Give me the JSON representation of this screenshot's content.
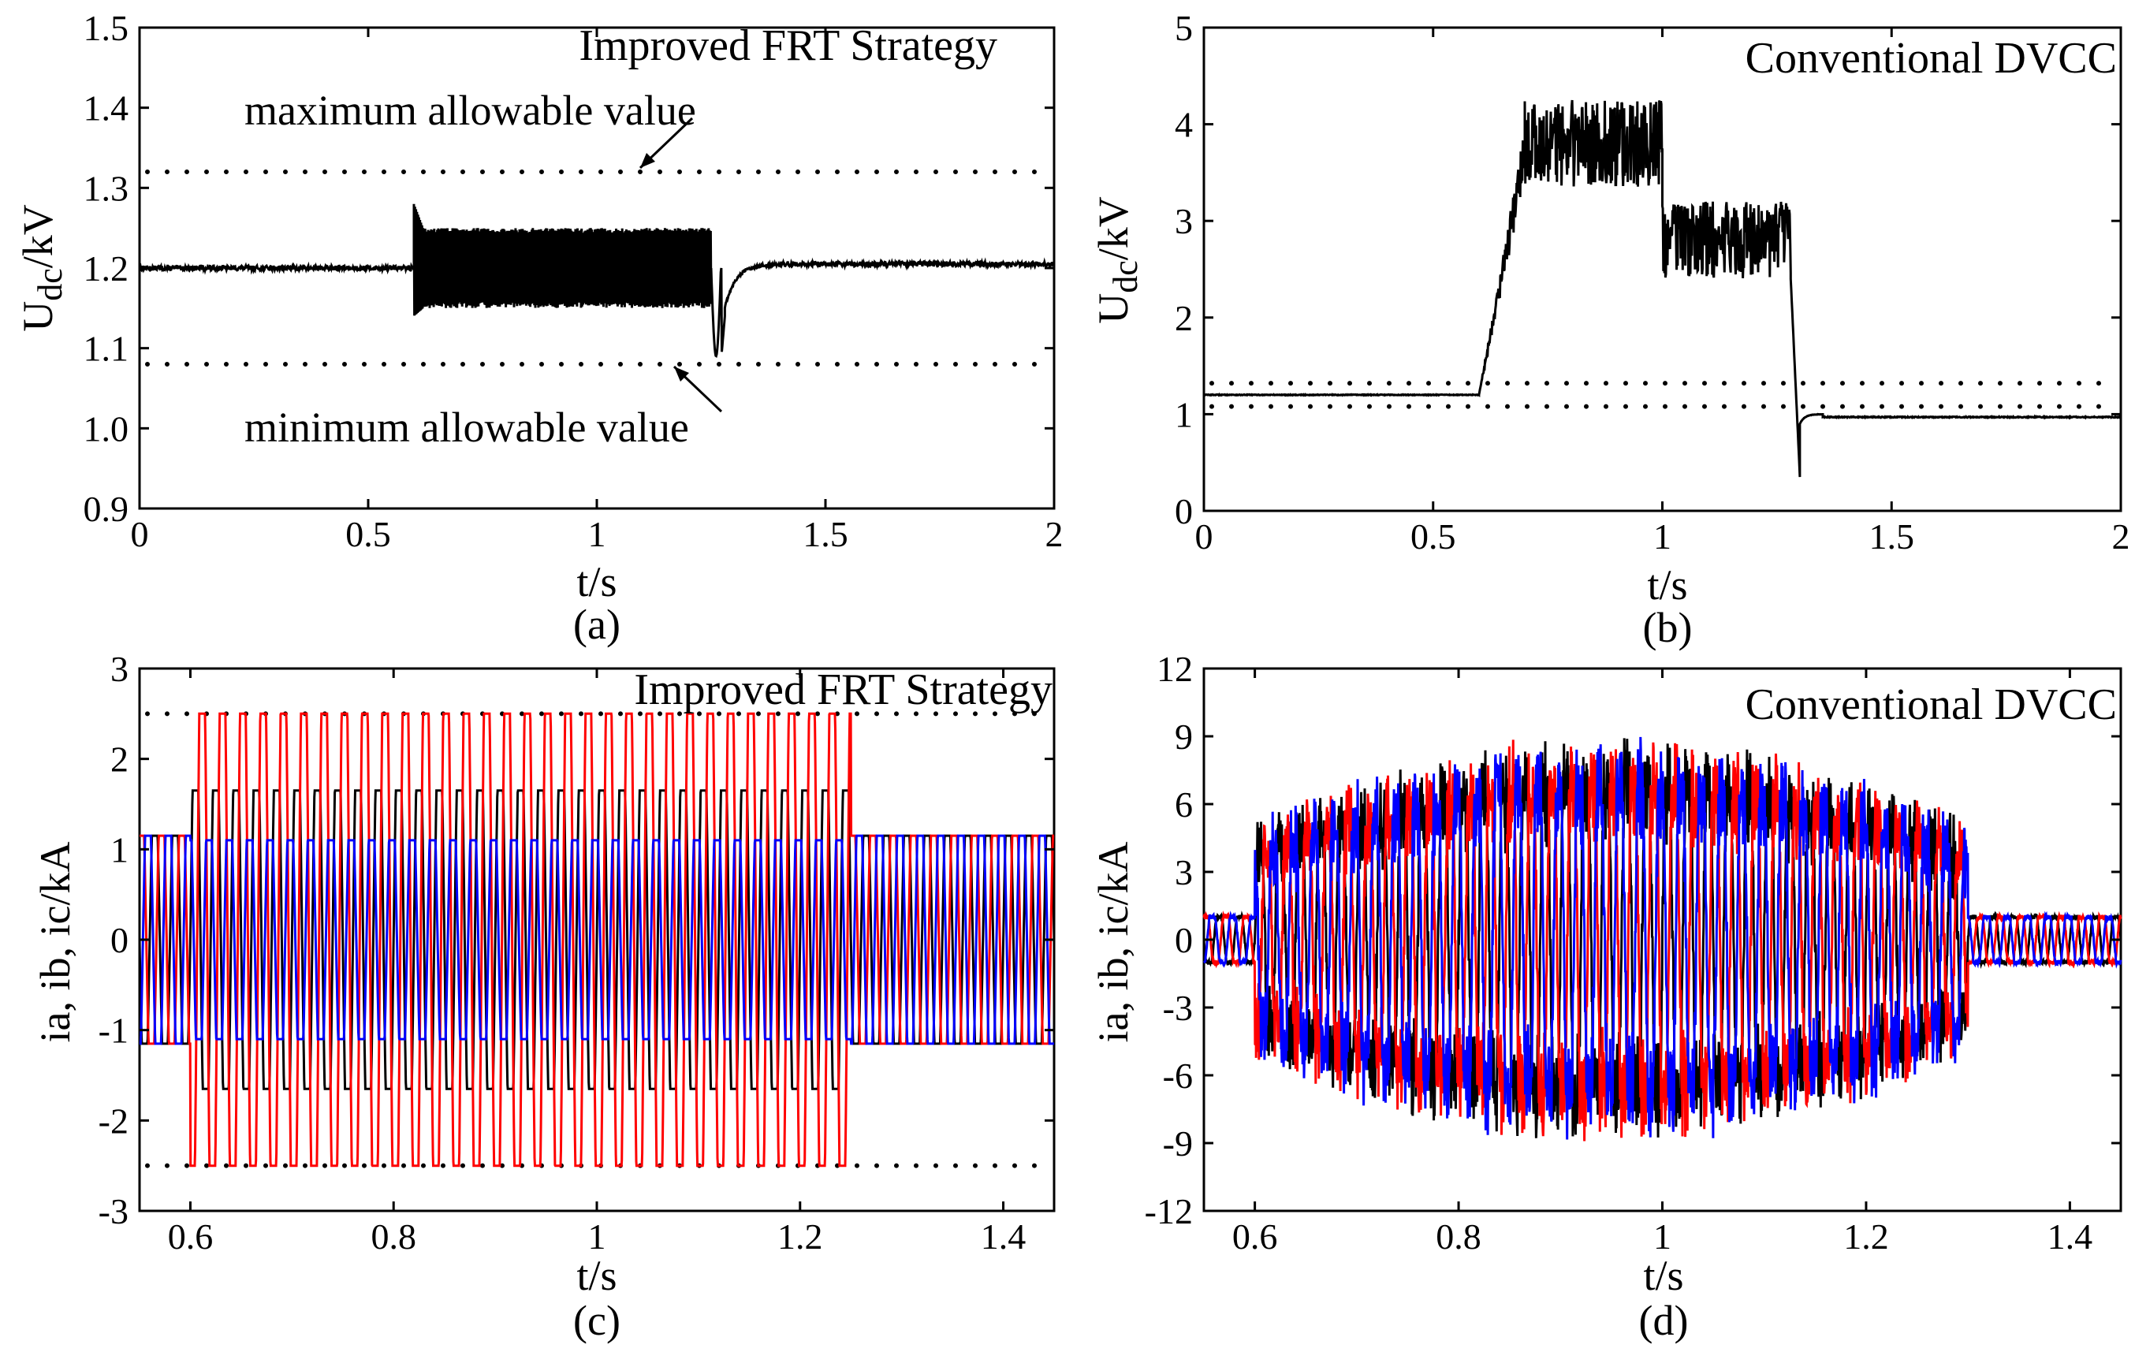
{
  "chart_data": [
    {
      "id": "a",
      "type": "line",
      "caption": "(a)",
      "title": "Improved FRT Strategy",
      "xlabel": "t/s",
      "ylabel_main": "U",
      "ylabel_sub": "dc",
      "ylabel_unit": "/kV",
      "xlim": [
        0,
        2
      ],
      "ylim": [
        0.9,
        1.5
      ],
      "xticks": [
        0,
        0.5,
        1,
        1.5,
        2
      ],
      "xtick_labels": [
        "0",
        "0.5",
        "1",
        "1.5",
        "2"
      ],
      "yticks": [
        0.9,
        1.0,
        1.1,
        1.2,
        1.3,
        1.4,
        1.5
      ],
      "ytick_labels": [
        "0.9",
        "1.0",
        "1.1",
        "1.2",
        "1.3",
        "1.4",
        "1.5"
      ],
      "limits": [
        1.32,
        1.08
      ],
      "annotations": [
        {
          "text": "maximum allowable value",
          "target": [
            1.08,
            1.32
          ]
        },
        {
          "text": "minimum allowable value",
          "target": [
            1.15,
            1.08
          ]
        }
      ],
      "series": [
        {
          "name": "Udc",
          "color": "#000000",
          "segments": [
            {
              "t0": 0.0,
              "t1": 0.6,
              "kind": "flat",
              "level": 1.2,
              "noise": 0.003
            },
            {
              "t0": 0.6,
              "t1": 0.62,
              "kind": "transient",
              "level": 1.2,
              "peak": 1.28,
              "dip": 1.14
            },
            {
              "t0": 0.62,
              "t1": 1.25,
              "kind": "ripple",
              "low": 1.15,
              "high": 1.25
            },
            {
              "t0": 1.25,
              "t1": 1.28,
              "kind": "dip",
              "level": 1.2,
              "min": 1.09
            },
            {
              "t0": 1.28,
              "t1": 1.4,
              "kind": "recover",
              "from": 1.15,
              "to": 1.205
            },
            {
              "t0": 1.4,
              "t1": 2.0,
              "kind": "flat",
              "level": 1.205,
              "noise": 0.003
            }
          ]
        }
      ]
    },
    {
      "id": "b",
      "type": "line",
      "caption": "(b)",
      "title": "Conventional DVCC",
      "xlabel": "t/s",
      "ylabel_main": "U",
      "ylabel_sub": "dc",
      "ylabel_unit": "/kV",
      "xlim": [
        0,
        2
      ],
      "ylim": [
        0,
        5
      ],
      "xticks": [
        0,
        0.5,
        1,
        1.5,
        2
      ],
      "xtick_labels": [
        "0",
        "0.5",
        "1",
        "1.5",
        "2"
      ],
      "yticks": [
        0,
        1,
        2,
        3,
        4,
        5
      ],
      "ytick_labels": [
        "0",
        "1",
        "2",
        "3",
        "4",
        "5"
      ],
      "limits": [
        1.32,
        1.08
      ],
      "series": [
        {
          "name": "Udc",
          "color": "#000000",
          "segments": [
            {
              "t0": 0.0,
              "t1": 0.6,
              "kind": "flat",
              "level": 1.2,
              "noise": 0.004
            },
            {
              "t0": 0.6,
              "t1": 0.7,
              "kind": "rise",
              "from": 1.2,
              "to": 3.7,
              "noise": 0.3
            },
            {
              "t0": 0.7,
              "t1": 1.0,
              "kind": "noisy",
              "level": 3.8,
              "noise": 0.45
            },
            {
              "t0": 1.0,
              "t1": 1.28,
              "kind": "noisy",
              "level": 2.8,
              "noise": 0.4
            },
            {
              "t0": 1.28,
              "t1": 1.3,
              "kind": "fall",
              "from": 2.4,
              "to": 0.35
            },
            {
              "t0": 1.3,
              "t1": 1.35,
              "kind": "recover",
              "from": 0.9,
              "to": 1.0
            },
            {
              "t0": 1.35,
              "t1": 2.0,
              "kind": "flat",
              "level": 0.97,
              "noise": 0.005
            }
          ]
        }
      ]
    },
    {
      "id": "c",
      "type": "line",
      "caption": "(c)",
      "title": "Improved FRT Strategy",
      "xlabel": "t/s",
      "ylabel": "ia, ib, ic/kA",
      "xlim": [
        0.55,
        1.45
      ],
      "ylim": [
        -3,
        3
      ],
      "xticks": [
        0.6,
        0.8,
        1.0,
        1.2,
        1.4
      ],
      "xtick_labels": [
        "0.6",
        "0.8",
        "1",
        "1.2",
        "1.4"
      ],
      "yticks": [
        -3,
        -2,
        -1,
        0,
        1,
        2,
        3
      ],
      "ytick_labels": [
        "-3",
        "-2",
        "-1",
        "0",
        "1",
        "2",
        "3"
      ],
      "limits": [
        2.5,
        -2.5
      ],
      "fault_interval": [
        0.6,
        1.25
      ],
      "frequency_hz": 50,
      "series": [
        {
          "name": "ia",
          "color": "#000000",
          "amplitude_normal": 1.15,
          "amplitude_fault": 1.65,
          "phase_deg": 0
        },
        {
          "name": "ib",
          "color": "#ff0000",
          "amplitude_normal": 1.15,
          "amplitude_fault": 2.5,
          "phase_deg": -120
        },
        {
          "name": "ic",
          "color": "#0000ff",
          "amplitude_normal": 1.15,
          "amplitude_fault": 1.1,
          "phase_deg": 120
        }
      ]
    },
    {
      "id": "d",
      "type": "line",
      "caption": "(d)",
      "title": "Conventional DVCC",
      "xlabel": "t/s",
      "ylabel": "ia, ib, ic/kA",
      "xlim": [
        0.55,
        1.45
      ],
      "ylim": [
        -12,
        12
      ],
      "xticks": [
        0.6,
        0.8,
        1.0,
        1.2,
        1.4
      ],
      "xtick_labels": [
        "0.6",
        "0.8",
        "1",
        "1.2",
        "1.4"
      ],
      "yticks": [
        -12,
        -9,
        -6,
        -3,
        0,
        3,
        6,
        9,
        12
      ],
      "ytick_labels": [
        "-12",
        "-9",
        "-6",
        "-3",
        "0",
        "3",
        "6",
        "9",
        "12"
      ],
      "fault_interval": [
        0.6,
        1.3
      ],
      "frequency_hz": 50,
      "series": [
        {
          "name": "ia",
          "color": "#000000",
          "amplitude_normal": 1.0,
          "amplitude_fault": 6.5,
          "phase_deg": 0
        },
        {
          "name": "ib",
          "color": "#ff0000",
          "amplitude_normal": 1.0,
          "amplitude_fault": 6.5,
          "phase_deg": -120
        },
        {
          "name": "ic",
          "color": "#0000ff",
          "amplitude_normal": 1.0,
          "amplitude_fault": 6.5,
          "phase_deg": 120
        }
      ]
    }
  ]
}
